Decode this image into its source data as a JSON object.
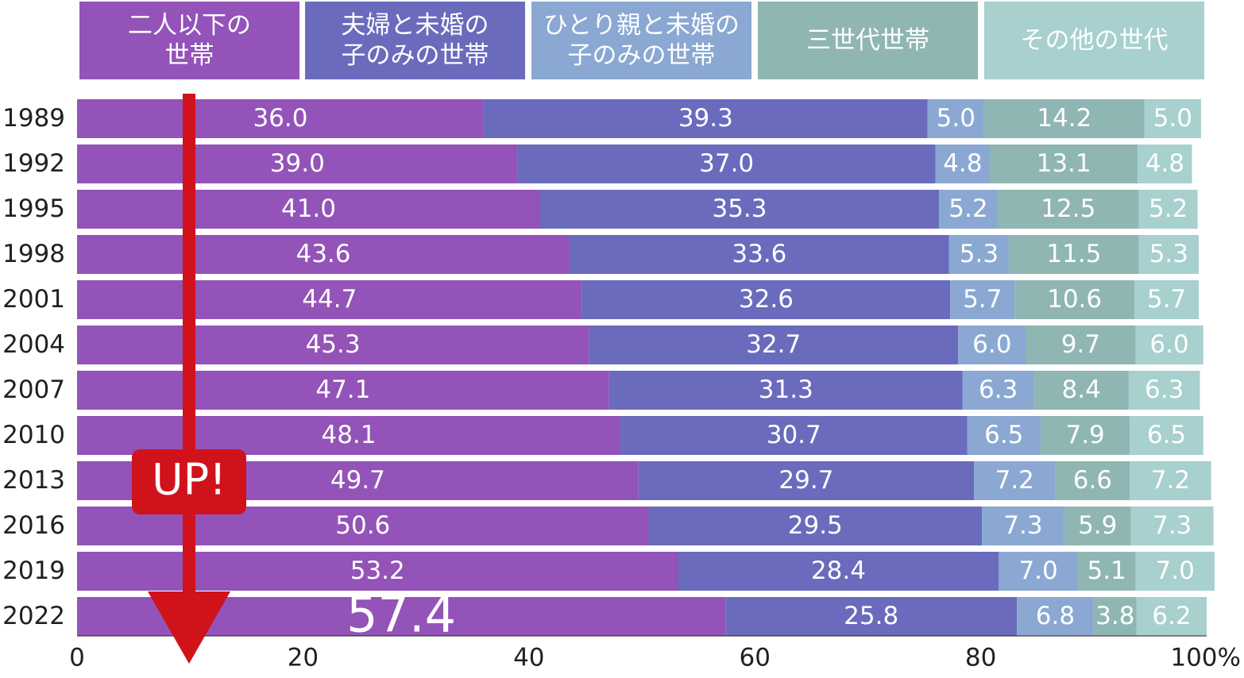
{
  "chart_data": {
    "type": "bar",
    "orientation": "horizontal",
    "stacked": true,
    "categories": [
      "1989",
      "1992",
      "1995",
      "1998",
      "2001",
      "2004",
      "2007",
      "2010",
      "2013",
      "2016",
      "2019",
      "2022"
    ],
    "series": [
      {
        "name": "二人以下の\n世帯",
        "color": "#9353b8",
        "values": [
          36.0,
          39.0,
          41.0,
          43.6,
          44.7,
          45.3,
          47.1,
          48.1,
          49.7,
          50.6,
          53.2,
          57.4
        ]
      },
      {
        "name": "夫婦と未婚の\n子のみの世帯",
        "color": "#6a6bbd",
        "values": [
          39.3,
          37.0,
          35.3,
          33.6,
          32.6,
          32.7,
          31.3,
          30.7,
          29.7,
          29.5,
          28.4,
          25.8
        ]
      },
      {
        "name": "ひとり親と未婚の\n子のみの世帯",
        "color": "#8aa8d2",
        "values": [
          5.0,
          4.8,
          5.2,
          5.3,
          5.7,
          6.0,
          6.3,
          6.5,
          7.2,
          7.3,
          7.0,
          6.8
        ]
      },
      {
        "name": "三世代世帯",
        "color": "#8fb6b3",
        "values": [
          14.2,
          13.1,
          12.5,
          11.5,
          10.6,
          9.7,
          8.4,
          7.9,
          6.6,
          5.9,
          5.1,
          3.8
        ]
      },
      {
        "name": "その他の世代",
        "color": "#a7d0ce",
        "values": [
          5.0,
          4.8,
          5.2,
          5.3,
          5.7,
          6.0,
          6.3,
          6.5,
          7.2,
          7.3,
          7.0,
          6.2
        ]
      }
    ],
    "value_labels": [
      [
        "36.0",
        "39.3",
        "5.0",
        "14.2",
        "5.0"
      ],
      [
        "39.0",
        "37.0",
        "4.8",
        "13.1",
        "4.8"
      ],
      [
        "41.0",
        "35.3",
        "5.2",
        "12.5",
        "5.2"
      ],
      [
        "43.6",
        "33.6",
        "5.3",
        "11.5",
        "5.3"
      ],
      [
        "44.7",
        "32.6",
        "5.7",
        "10.6",
        "5.7"
      ],
      [
        "45.3",
        "32.7",
        "6.0",
        "9.7",
        "6.0"
      ],
      [
        "47.1",
        "31.3",
        "6.3",
        "8.4",
        "6.3"
      ],
      [
        "48.1",
        "30.7",
        "6.5",
        "7.9",
        "6.5"
      ],
      [
        "49.7",
        "29.7",
        "7.2",
        "6.6",
        "7.2"
      ],
      [
        "50.6",
        "29.5",
        "7.3",
        "5.9",
        "7.3"
      ],
      [
        "53.2",
        "28.4",
        "7.0",
        "5.1",
        "7.0"
      ],
      [
        "57.4",
        "25.8",
        "6.8",
        "3.8",
        "6.2"
      ]
    ],
    "xlim": [
      0,
      100
    ],
    "xticks": [
      0,
      20,
      40,
      60,
      80,
      100
    ],
    "xtick_labels": [
      "0",
      "20",
      "40",
      "60",
      "80",
      "100%"
    ],
    "legend_position": "top",
    "annotation": {
      "text": "UP!",
      "arrow_color": "#d0121b"
    },
    "grid": false
  }
}
